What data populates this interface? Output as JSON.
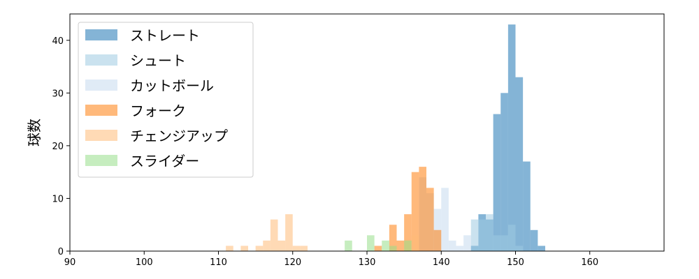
{
  "chart_data": {
    "type": "histogram",
    "xlabel": "",
    "ylabel": "球数",
    "xlim": [
      90,
      170
    ],
    "ylim": [
      0,
      45
    ],
    "xticks": [
      90,
      100,
      110,
      120,
      130,
      140,
      150,
      160
    ],
    "yticks": [
      0,
      10,
      20,
      30,
      40
    ],
    "bin_width": 1,
    "grid": false,
    "legend_position": "top-left",
    "series": [
      {
        "name": "ストレート",
        "color": "#1f77b4",
        "bins": [
          [
            144,
            1
          ],
          [
            145,
            7
          ],
          [
            146,
            6
          ],
          [
            147,
            26
          ],
          [
            148,
            30
          ],
          [
            149,
            43
          ],
          [
            150,
            33
          ],
          [
            151,
            17
          ],
          [
            152,
            4
          ],
          [
            153,
            1
          ]
        ]
      },
      {
        "name": "シュート",
        "color": "#9ecae1",
        "bins": [
          [
            144,
            6
          ],
          [
            145,
            6
          ],
          [
            146,
            7
          ],
          [
            147,
            3
          ],
          [
            148,
            3
          ],
          [
            149,
            5
          ],
          [
            150,
            1
          ]
        ]
      },
      {
        "name": "カットボール",
        "color": "#c6dbef",
        "bins": [
          [
            137,
            14
          ],
          [
            138,
            11
          ],
          [
            139,
            8
          ],
          [
            140,
            12
          ],
          [
            141,
            2
          ],
          [
            142,
            1
          ],
          [
            143,
            3
          ]
        ]
      },
      {
        "name": "フォーク",
        "color": "#ff7f0e",
        "bins": [
          [
            131,
            1
          ],
          [
            133,
            5
          ],
          [
            134,
            2
          ],
          [
            135,
            7
          ],
          [
            136,
            15
          ],
          [
            137,
            16
          ],
          [
            138,
            12
          ],
          [
            139,
            4
          ]
        ]
      },
      {
        "name": "チェンジアップ",
        "color": "#ffbb78",
        "bins": [
          [
            111,
            1
          ],
          [
            113,
            1
          ],
          [
            115,
            1
          ],
          [
            116,
            2
          ],
          [
            117,
            6
          ],
          [
            118,
            2
          ],
          [
            119,
            7
          ],
          [
            120,
            1
          ],
          [
            121,
            1
          ],
          [
            135,
            2
          ],
          [
            136,
            3
          ]
        ]
      },
      {
        "name": "スライダー",
        "color": "#98df8a",
        "bins": [
          [
            127,
            2
          ],
          [
            130,
            3
          ],
          [
            132,
            2
          ],
          [
            133,
            1
          ],
          [
            135,
            2
          ]
        ]
      }
    ]
  }
}
